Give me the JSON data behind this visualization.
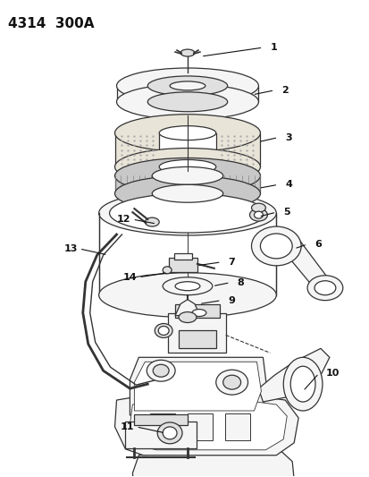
{
  "title": "4314  300A",
  "title_fontsize": 11,
  "title_fontweight": "bold",
  "background_color": "#ffffff",
  "figsize": [
    4.14,
    5.33
  ],
  "dpi": 100,
  "label_fontsize": 8,
  "label_fontweight": "bold",
  "ec": "#333333",
  "fc_white": "#ffffff",
  "fc_light": "#f5f5f5",
  "fc_mid": "#e0e0e0",
  "fc_dark": "#c8c8c8",
  "fc_filter": "#e8e4d8"
}
